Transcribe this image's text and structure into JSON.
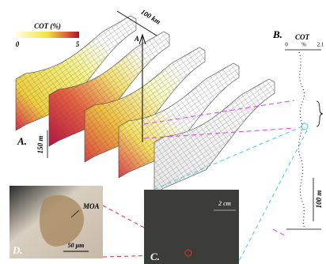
{
  "colorbar": {
    "title": "COT (%)",
    "min": "0",
    "max": "5"
  },
  "panel_a": {
    "label": "A.",
    "length_scale": "100 km",
    "height_scale": "150 m",
    "arrow_label": "A"
  },
  "panel_b": {
    "label": "B.",
    "title": "COT",
    "axis_min": "0",
    "axis_unit": "%",
    "axis_max": "2.1",
    "depth_scale": "100 m"
  },
  "panel_c": {
    "label": "C.",
    "scale": "2 cm"
  },
  "panel_d": {
    "label": "D.",
    "annotation": "MOA",
    "scale": "50 μm"
  }
}
